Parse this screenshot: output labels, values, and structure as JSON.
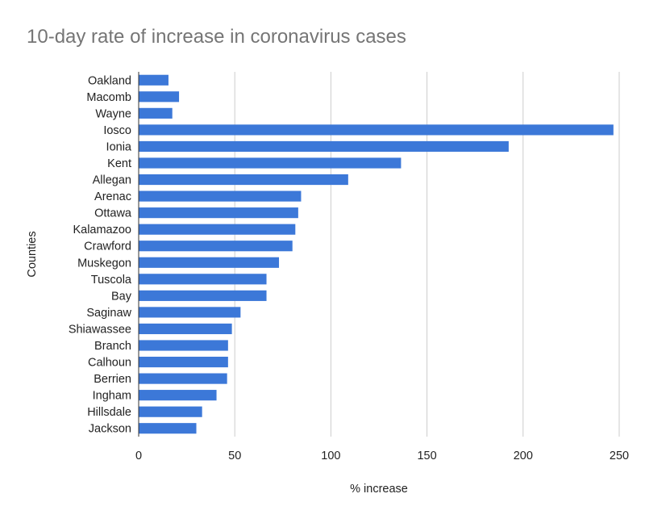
{
  "chart_data": {
    "type": "bar",
    "orientation": "horizontal",
    "title": "10-day rate of increase in coronavirus cases",
    "xlabel": "% increase",
    "ylabel": "Counties",
    "xlim": [
      0,
      250
    ],
    "xticks": [
      0,
      50,
      100,
      150,
      200,
      250
    ],
    "grid": true,
    "legend": "none",
    "bar_color": "#3c78d8",
    "categories": [
      "Oakland",
      "Macomb",
      "Wayne",
      "Iosco",
      "Ionia",
      "Kent",
      "Allegan",
      "Arenac",
      "Ottawa",
      "Kalamazoo",
      "Crawford",
      "Muskegon",
      "Tuscola",
      "Bay",
      "Saginaw",
      "Shiawassee",
      "Branch",
      "Calhoun",
      "Berrien",
      "Ingham",
      "Hillsdale",
      "Jackson"
    ],
    "values": [
      15.5,
      21,
      17.5,
      247,
      192.5,
      136.5,
      109,
      84.5,
      83,
      81.5,
      80,
      73,
      66.5,
      66.5,
      53,
      48.5,
      46.5,
      46.5,
      46,
      40.5,
      33,
      30
    ]
  }
}
